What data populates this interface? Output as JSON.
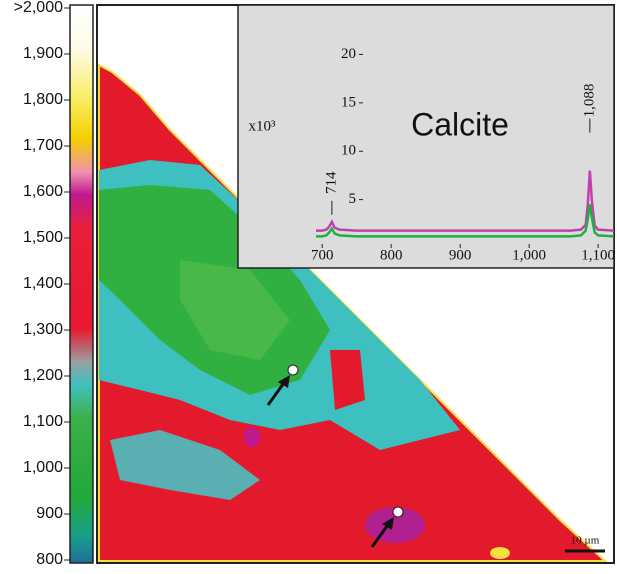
{
  "chart_data": [
    {
      "type": "colormap",
      "colorbar_lim": [
        800,
        2000
      ],
      "colorbar_ticks": [
        800,
        900,
        {
          "value": 1000,
          "label": "1,000"
        },
        {
          "value": 1100,
          "label": "1,100"
        },
        {
          "value": 1200,
          "label": "1,200"
        },
        {
          "value": 1300,
          "label": "1,300"
        },
        {
          "value": 1400,
          "label": "1,400"
        },
        {
          "value": 1500,
          "label": "1,500"
        },
        {
          "value": 1600,
          "label": "1,600"
        },
        {
          "value": 1700,
          "label": "1,700"
        },
        {
          "value": 1800,
          "label": "1,800"
        },
        {
          "value": 1900,
          "label": "1,900"
        },
        {
          "value": 2000,
          "label": ">2,000"
        }
      ],
      "scale_bar": "10 µm"
    },
    {
      "type": "line",
      "title": "Calcite",
      "ylabel": "x10³",
      "annotations": [
        "714",
        "1,088"
      ],
      "xlim": [
        691,
        1123
      ],
      "ylim": [
        0,
        24.8
      ],
      "xticks": [
        700,
        800,
        900,
        {
          "value": 1000,
          "label": "1,000"
        },
        {
          "value": 1100,
          "label": "1,100"
        }
      ],
      "yticks": [
        5,
        10,
        15,
        20
      ],
      "x": [
        691,
        700,
        706,
        710,
        714,
        718,
        725,
        750,
        800,
        900,
        1000,
        1060,
        1075,
        1082,
        1085,
        1088,
        1091,
        1095,
        1100,
        1123
      ],
      "series": [
        {
          "color": "#c040b0",
          "values": [
            1.8,
            1.8,
            1.9,
            2.2,
            2.7,
            2.1,
            1.9,
            1.8,
            1.8,
            1.8,
            1.8,
            1.8,
            1.9,
            2.4,
            4.5,
            8.0,
            4.8,
            2.3,
            1.9,
            1.8
          ]
        },
        {
          "color": "#20b040",
          "values": [
            1.2,
            1.2,
            1.3,
            1.6,
            2.0,
            1.5,
            1.3,
            1.2,
            1.2,
            1.2,
            1.2,
            1.2,
            1.3,
            1.8,
            3.0,
            4.5,
            3.1,
            1.6,
            1.3,
            1.2
          ]
        }
      ]
    }
  ]
}
